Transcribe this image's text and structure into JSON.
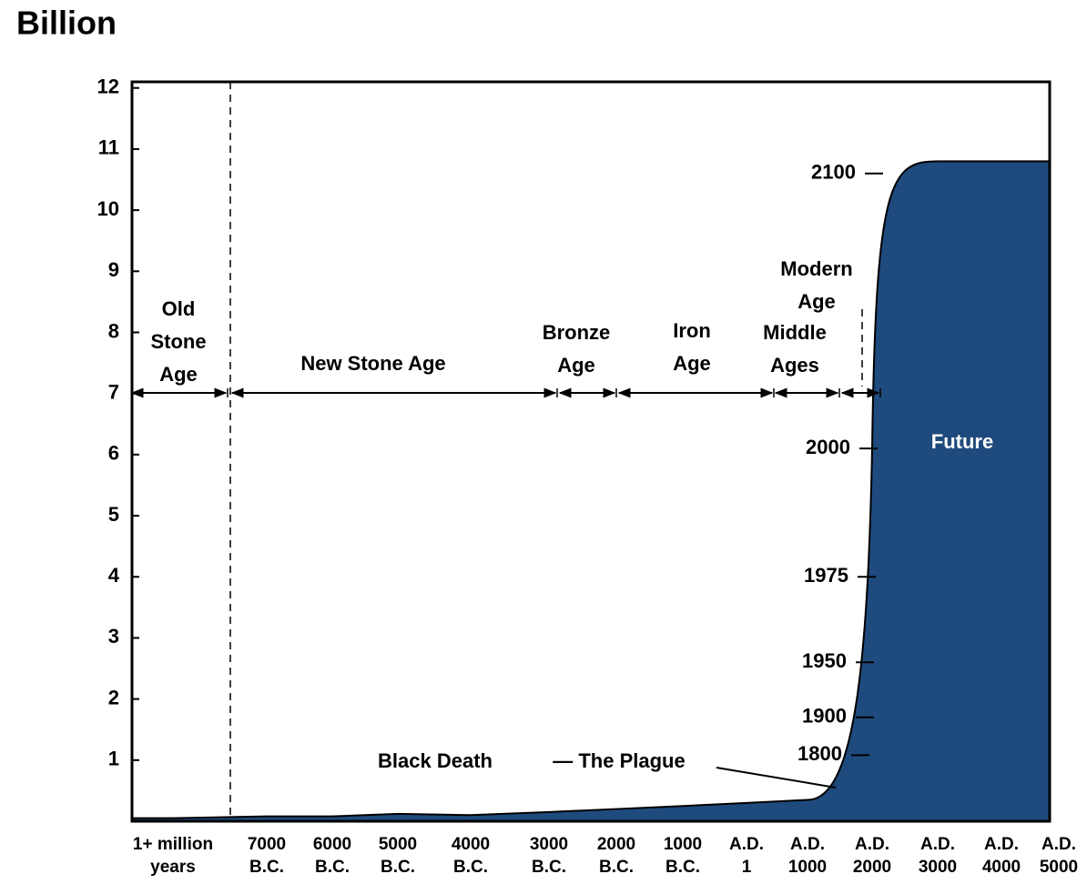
{
  "chart_data": {
    "type": "area",
    "title": "Billion",
    "categories": [
      "1+ million years",
      "7000 B.C.",
      "6000 B.C.",
      "5000 B.C.",
      "4000 B.C.",
      "3000 B.C.",
      "2000 B.C.",
      "1000 B.C.",
      "A.D. 1",
      "A.D. 1000",
      "A.D. 2000",
      "A.D. 3000",
      "A.D. 4000",
      "A.D. 5000"
    ],
    "values": [
      0.05,
      0.08,
      0.08,
      0.12,
      0.1,
      0.15,
      0.2,
      0.25,
      0.3,
      0.35,
      6.1,
      10.8,
      10.8,
      10.8
    ],
    "color": "#1f4a7d",
    "ylim": [
      0,
      12.1
    ],
    "yticks": [
      1,
      2,
      3,
      4,
      5,
      6,
      7,
      8,
      9,
      10,
      11,
      12
    ],
    "year_markers": [
      {
        "label": "2100",
        "value": 10.6
      },
      {
        "label": "2000",
        "value": 6.1
      },
      {
        "label": "1975",
        "value": 4.0
      },
      {
        "label": "1950",
        "value": 2.6
      },
      {
        "label": "1900",
        "value": 1.7
      },
      {
        "label": "1800",
        "value": 1.08
      }
    ],
    "periods": [
      "Old Stone Age",
      "New Stone Age",
      "Bronze Age",
      "Iron Age",
      "Middle Ages",
      "Modern Age"
    ],
    "annotations": [
      "Black Death",
      "— The Plague",
      "Future"
    ]
  }
}
